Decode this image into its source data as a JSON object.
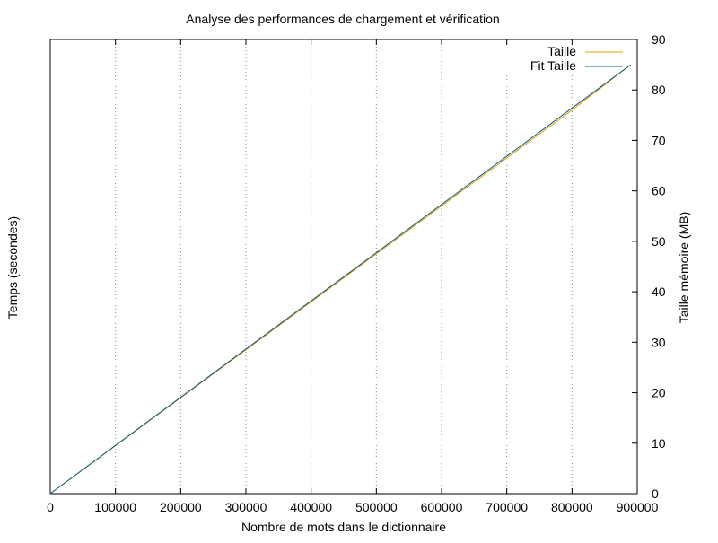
{
  "chart_data": {
    "type": "line",
    "title": "Analyse des performances de chargement et vérification",
    "xlabel": "Nombre de mots dans le dictionnaire",
    "ylabel_left": "Temps (secondes)",
    "ylabel_right": "Taille mémoire (MB)",
    "xlim": [
      0,
      900000
    ],
    "ylim_right": [
      0,
      90
    ],
    "x_ticks": [
      0,
      100000,
      200000,
      300000,
      400000,
      500000,
      600000,
      700000,
      800000,
      900000
    ],
    "x_tick_labels": [
      "0",
      "100000",
      "200000",
      "300000",
      "400000",
      "500000",
      "600000",
      "700000",
      "800000",
      "900000"
    ],
    "y_right_ticks": [
      0,
      10,
      20,
      30,
      40,
      50,
      60,
      70,
      80,
      90
    ],
    "y_right_tick_labels": [
      "0",
      "10",
      "20",
      "30",
      "40",
      "50",
      "60",
      "70",
      "80",
      "90"
    ],
    "grid": "x-dotted",
    "legend_position": "top-right",
    "series": [
      {
        "name": "Taille",
        "axis": "right",
        "color": "#e6a000",
        "x": [
          0,
          100000,
          200000,
          300000,
          400000,
          500000,
          600000,
          700000,
          800000,
          890000
        ],
        "values": [
          0,
          9.5,
          19.0,
          28.5,
          38.0,
          47.5,
          57.0,
          66.5,
          76.0,
          85.0
        ]
      },
      {
        "name": "Fit Taille",
        "axis": "right",
        "color": "#005a8c",
        "x": [
          0,
          890000
        ],
        "values": [
          0,
          85.0
        ]
      }
    ]
  }
}
